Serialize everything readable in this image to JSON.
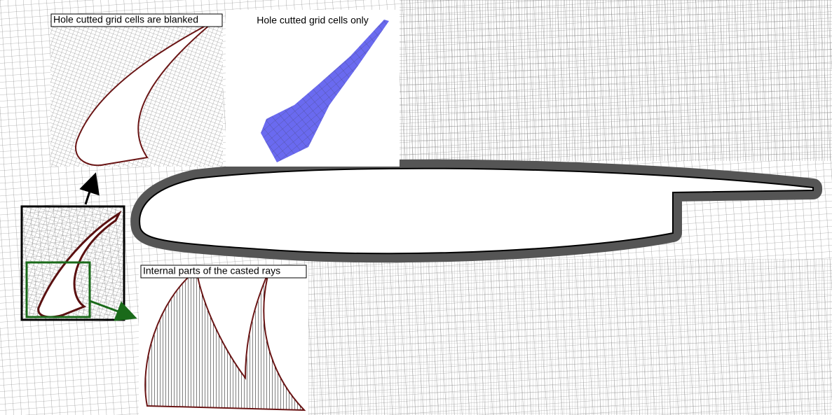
{
  "insets": [
    {
      "label": "Hole cutted grid cells are blanked"
    },
    {
      "label": "Hole cutted grid cells only"
    },
    {
      "label": "Internal parts of the casted rays"
    }
  ]
}
